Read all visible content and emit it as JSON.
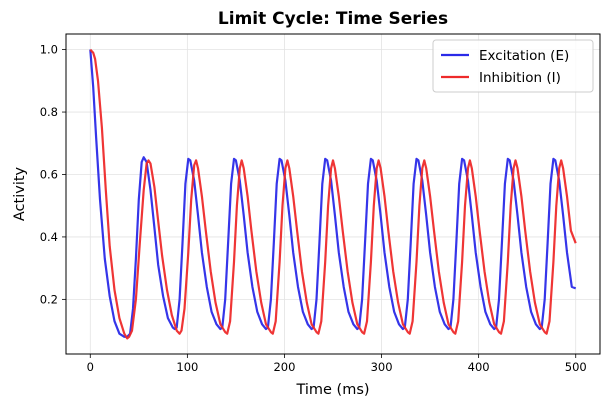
{
  "chart_data": {
    "type": "line",
    "title": "Limit Cycle: Time Series",
    "xlabel": "Time (ms)",
    "ylabel": "Activity",
    "xlim": [
      -25,
      525
    ],
    "ylim": [
      0.025,
      1.05
    ],
    "xticks": [
      0,
      100,
      200,
      300,
      400,
      500
    ],
    "xtick_labels": [
      "0",
      "100",
      "200",
      "300",
      "400",
      "500"
    ],
    "yticks": [
      0.2,
      0.4,
      0.6,
      0.8,
      1.0
    ],
    "ytick_labels": [
      "0.2",
      "0.4",
      "0.6",
      "0.8",
      "1.0"
    ],
    "grid": true,
    "legend_position": "top-right",
    "series": [
      {
        "name": "Excitation (E)",
        "color": "#2a2ae8",
        "points": [
          [
            0,
            1.0
          ],
          [
            3,
            0.88
          ],
          [
            6,
            0.72
          ],
          [
            10,
            0.52
          ],
          [
            15,
            0.33
          ],
          [
            20,
            0.21
          ],
          [
            25,
            0.13
          ],
          [
            30,
            0.09
          ],
          [
            35,
            0.08
          ],
          [
            38,
            0.08
          ],
          [
            41,
            0.09
          ],
          [
            44,
            0.17
          ],
          [
            47,
            0.33
          ],
          [
            50,
            0.52
          ],
          [
            53,
            0.64
          ],
          [
            55,
            0.655
          ],
          [
            58,
            0.64
          ],
          [
            62,
            0.55
          ],
          [
            66,
            0.43
          ],
          [
            70,
            0.31
          ],
          [
            75,
            0.21
          ],
          [
            80,
            0.14
          ],
          [
            85,
            0.11
          ],
          [
            87,
            0.105
          ],
          [
            89,
            0.11
          ],
          [
            92,
            0.2
          ],
          [
            95,
            0.38
          ],
          [
            98,
            0.57
          ],
          [
            101,
            0.65
          ],
          [
            103,
            0.645
          ],
          [
            107,
            0.58
          ],
          [
            111,
            0.47
          ],
          [
            115,
            0.35
          ],
          [
            120,
            0.24
          ],
          [
            125,
            0.16
          ],
          [
            130,
            0.12
          ],
          [
            134,
            0.105
          ],
          [
            136,
            0.11
          ],
          [
            139,
            0.2
          ],
          [
            142,
            0.38
          ],
          [
            145,
            0.57
          ],
          [
            148,
            0.65
          ],
          [
            150,
            0.645
          ],
          [
            154,
            0.58
          ],
          [
            158,
            0.47
          ],
          [
            162,
            0.35
          ],
          [
            167,
            0.24
          ],
          [
            172,
            0.16
          ],
          [
            177,
            0.12
          ],
          [
            181,
            0.105
          ],
          [
            183,
            0.11
          ],
          [
            186,
            0.2
          ],
          [
            189,
            0.38
          ],
          [
            192,
            0.57
          ],
          [
            195,
            0.65
          ],
          [
            197,
            0.645
          ],
          [
            201,
            0.58
          ],
          [
            205,
            0.47
          ],
          [
            209,
            0.35
          ],
          [
            214,
            0.24
          ],
          [
            219,
            0.16
          ],
          [
            224,
            0.12
          ],
          [
            228,
            0.105
          ],
          [
            230,
            0.11
          ],
          [
            233,
            0.2
          ],
          [
            236,
            0.38
          ],
          [
            239,
            0.57
          ],
          [
            242,
            0.65
          ],
          [
            244,
            0.645
          ],
          [
            248,
            0.58
          ],
          [
            252,
            0.47
          ],
          [
            256,
            0.35
          ],
          [
            261,
            0.24
          ],
          [
            266,
            0.16
          ],
          [
            271,
            0.12
          ],
          [
            275,
            0.105
          ],
          [
            277,
            0.11
          ],
          [
            280,
            0.2
          ],
          [
            283,
            0.38
          ],
          [
            286,
            0.57
          ],
          [
            289,
            0.65
          ],
          [
            291,
            0.645
          ],
          [
            295,
            0.58
          ],
          [
            299,
            0.47
          ],
          [
            303,
            0.35
          ],
          [
            308,
            0.24
          ],
          [
            313,
            0.16
          ],
          [
            318,
            0.12
          ],
          [
            322,
            0.105
          ],
          [
            324,
            0.11
          ],
          [
            327,
            0.2
          ],
          [
            330,
            0.38
          ],
          [
            333,
            0.57
          ],
          [
            336,
            0.65
          ],
          [
            338,
            0.645
          ],
          [
            342,
            0.58
          ],
          [
            346,
            0.47
          ],
          [
            350,
            0.35
          ],
          [
            355,
            0.24
          ],
          [
            360,
            0.16
          ],
          [
            365,
            0.12
          ],
          [
            369,
            0.105
          ],
          [
            371,
            0.11
          ],
          [
            374,
            0.2
          ],
          [
            377,
            0.38
          ],
          [
            380,
            0.57
          ],
          [
            383,
            0.65
          ],
          [
            385,
            0.645
          ],
          [
            389,
            0.58
          ],
          [
            393,
            0.47
          ],
          [
            397,
            0.35
          ],
          [
            402,
            0.24
          ],
          [
            407,
            0.16
          ],
          [
            412,
            0.12
          ],
          [
            416,
            0.105
          ],
          [
            418,
            0.11
          ],
          [
            421,
            0.2
          ],
          [
            424,
            0.38
          ],
          [
            427,
            0.57
          ],
          [
            430,
            0.65
          ],
          [
            432,
            0.645
          ],
          [
            436,
            0.58
          ],
          [
            440,
            0.47
          ],
          [
            444,
            0.35
          ],
          [
            449,
            0.24
          ],
          [
            454,
            0.16
          ],
          [
            459,
            0.12
          ],
          [
            463,
            0.105
          ],
          [
            465,
            0.11
          ],
          [
            468,
            0.2
          ],
          [
            471,
            0.38
          ],
          [
            474,
            0.57
          ],
          [
            477,
            0.65
          ],
          [
            479,
            0.645
          ],
          [
            483,
            0.58
          ],
          [
            487,
            0.47
          ],
          [
            491,
            0.35
          ],
          [
            496,
            0.24
          ],
          [
            500,
            0.235
          ]
        ]
      },
      {
        "name": "Inhibition (I)",
        "color": "#ee2a2a",
        "points": [
          [
            0,
            1.0
          ],
          [
            3,
            0.99
          ],
          [
            5,
            0.97
          ],
          [
            8,
            0.9
          ],
          [
            12,
            0.75
          ],
          [
            16,
            0.55
          ],
          [
            20,
            0.37
          ],
          [
            25,
            0.23
          ],
          [
            30,
            0.14
          ],
          [
            35,
            0.09
          ],
          [
            38,
            0.075
          ],
          [
            40,
            0.08
          ],
          [
            43,
            0.1
          ],
          [
            47,
            0.2
          ],
          [
            51,
            0.38
          ],
          [
            55,
            0.55
          ],
          [
            58,
            0.635
          ],
          [
            60,
            0.645
          ],
          [
            62,
            0.635
          ],
          [
            66,
            0.56
          ],
          [
            70,
            0.45
          ],
          [
            74,
            0.34
          ],
          [
            79,
            0.23
          ],
          [
            84,
            0.15
          ],
          [
            89,
            0.1
          ],
          [
            92,
            0.09
          ],
          [
            94,
            0.1
          ],
          [
            97,
            0.17
          ],
          [
            101,
            0.35
          ],
          [
            104,
            0.52
          ],
          [
            107,
            0.63
          ],
          [
            109,
            0.645
          ],
          [
            111,
            0.62
          ],
          [
            115,
            0.53
          ],
          [
            119,
            0.42
          ],
          [
            124,
            0.29
          ],
          [
            129,
            0.19
          ],
          [
            134,
            0.12
          ],
          [
            139,
            0.095
          ],
          [
            141,
            0.09
          ],
          [
            144,
            0.13
          ],
          [
            148,
            0.32
          ],
          [
            151,
            0.5
          ],
          [
            154,
            0.62
          ],
          [
            156,
            0.645
          ],
          [
            158,
            0.62
          ],
          [
            162,
            0.53
          ],
          [
            166,
            0.42
          ],
          [
            171,
            0.29
          ],
          [
            176,
            0.19
          ],
          [
            181,
            0.12
          ],
          [
            186,
            0.095
          ],
          [
            188,
            0.09
          ],
          [
            191,
            0.13
          ],
          [
            195,
            0.32
          ],
          [
            198,
            0.5
          ],
          [
            201,
            0.62
          ],
          [
            203,
            0.645
          ],
          [
            205,
            0.62
          ],
          [
            209,
            0.53
          ],
          [
            213,
            0.42
          ],
          [
            218,
            0.29
          ],
          [
            223,
            0.19
          ],
          [
            228,
            0.12
          ],
          [
            233,
            0.095
          ],
          [
            235,
            0.09
          ],
          [
            238,
            0.13
          ],
          [
            242,
            0.32
          ],
          [
            245,
            0.5
          ],
          [
            248,
            0.62
          ],
          [
            250,
            0.645
          ],
          [
            252,
            0.62
          ],
          [
            256,
            0.53
          ],
          [
            260,
            0.42
          ],
          [
            265,
            0.29
          ],
          [
            270,
            0.19
          ],
          [
            275,
            0.12
          ],
          [
            280,
            0.095
          ],
          [
            282,
            0.09
          ],
          [
            285,
            0.13
          ],
          [
            289,
            0.32
          ],
          [
            292,
            0.5
          ],
          [
            295,
            0.62
          ],
          [
            297,
            0.645
          ],
          [
            299,
            0.62
          ],
          [
            303,
            0.53
          ],
          [
            307,
            0.42
          ],
          [
            312,
            0.29
          ],
          [
            317,
            0.19
          ],
          [
            322,
            0.12
          ],
          [
            327,
            0.095
          ],
          [
            329,
            0.09
          ],
          [
            332,
            0.13
          ],
          [
            336,
            0.32
          ],
          [
            339,
            0.5
          ],
          [
            342,
            0.62
          ],
          [
            344,
            0.645
          ],
          [
            346,
            0.62
          ],
          [
            350,
            0.53
          ],
          [
            354,
            0.42
          ],
          [
            359,
            0.29
          ],
          [
            364,
            0.19
          ],
          [
            369,
            0.12
          ],
          [
            374,
            0.095
          ],
          [
            376,
            0.09
          ],
          [
            379,
            0.13
          ],
          [
            383,
            0.32
          ],
          [
            386,
            0.5
          ],
          [
            389,
            0.62
          ],
          [
            391,
            0.645
          ],
          [
            393,
            0.62
          ],
          [
            397,
            0.53
          ],
          [
            401,
            0.42
          ],
          [
            406,
            0.29
          ],
          [
            411,
            0.19
          ],
          [
            416,
            0.12
          ],
          [
            421,
            0.095
          ],
          [
            423,
            0.09
          ],
          [
            426,
            0.13
          ],
          [
            430,
            0.32
          ],
          [
            433,
            0.5
          ],
          [
            436,
            0.62
          ],
          [
            438,
            0.645
          ],
          [
            440,
            0.62
          ],
          [
            444,
            0.53
          ],
          [
            448,
            0.42
          ],
          [
            453,
            0.29
          ],
          [
            458,
            0.19
          ],
          [
            463,
            0.12
          ],
          [
            468,
            0.095
          ],
          [
            470,
            0.09
          ],
          [
            473,
            0.13
          ],
          [
            477,
            0.32
          ],
          [
            480,
            0.5
          ],
          [
            483,
            0.62
          ],
          [
            485,
            0.645
          ],
          [
            487,
            0.62
          ],
          [
            491,
            0.53
          ],
          [
            495,
            0.42
          ],
          [
            500,
            0.38
          ]
        ]
      }
    ]
  }
}
